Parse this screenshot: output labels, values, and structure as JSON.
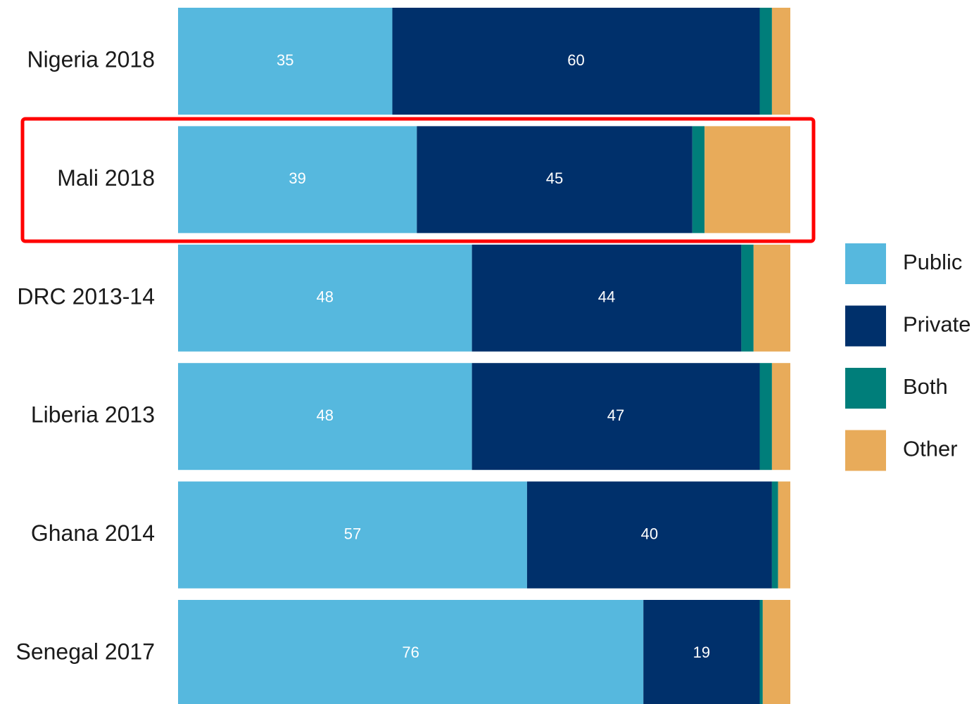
{
  "chart_data": {
    "type": "stacked_barh",
    "categories": [
      "Nigeria 2018",
      "Mali 2018",
      "DRC 2013-14",
      "Liberia 2013",
      "Ghana 2014",
      "Senegal 2017"
    ],
    "series": [
      {
        "name": "Public",
        "color": "#56b8de",
        "data_labels": true,
        "values": [
          35,
          39,
          48,
          48,
          57,
          76
        ]
      },
      {
        "name": "Private",
        "color": "#00306b",
        "data_labels": true,
        "values": [
          60,
          45,
          44,
          47,
          40,
          19
        ]
      },
      {
        "name": "Both",
        "color": "#007e7a",
        "data_labels": false,
        "values": [
          2,
          2,
          2,
          2,
          1,
          0.5
        ]
      },
      {
        "name": "Other",
        "color": "#e8ab5a",
        "data_labels": false,
        "values": [
          3,
          14,
          6,
          3,
          2,
          4.5
        ]
      }
    ],
    "xlim": [
      0,
      100
    ],
    "legend": "right"
  }
}
